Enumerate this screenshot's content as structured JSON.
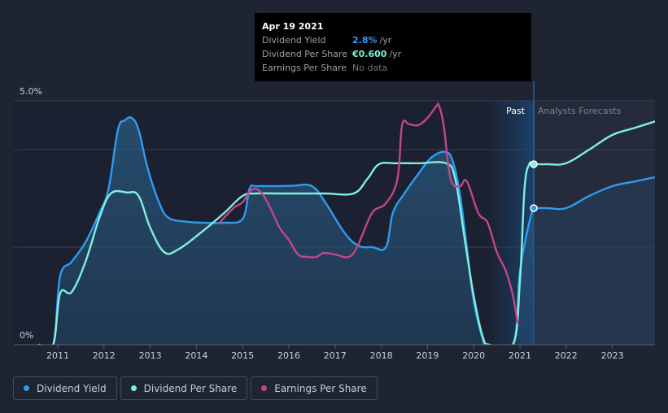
{
  "tooltip": {
    "date": "Apr 19 2021",
    "rows": [
      {
        "label": "Dividend Yield",
        "value": "2.8%",
        "unit": "/yr"
      },
      {
        "label": "Dividend Per Share",
        "value": "€0.600",
        "unit": "/yr"
      },
      {
        "label": "Earnings Per Share",
        "value": "No data"
      }
    ]
  },
  "region_labels": {
    "past": "Past",
    "forecast": "Analysts Forecasts"
  },
  "legend": [
    {
      "label": "Dividend Yield",
      "color": "#2f9bf0"
    },
    {
      "label": "Dividend Per Share",
      "color": "#7ff0dc"
    },
    {
      "label": "Earnings Per Share",
      "color": "#c4458a"
    }
  ],
  "chart_data": {
    "type": "line",
    "x_ticks": [
      "2011",
      "2012",
      "2013",
      "2014",
      "2015",
      "2016",
      "2017",
      "2018",
      "2019",
      "2020",
      "2021",
      "2022",
      "2023"
    ],
    "y_ticks": [
      "0%",
      "5.0%"
    ],
    "ylim": [
      0,
      5.0
    ],
    "xlim": [
      2010.5,
      2024.0
    ],
    "past_until": 2021.3,
    "series": [
      {
        "name": "Dividend Yield",
        "color": "#2f9bf0",
        "points": [
          [
            2010.6,
            0.0
          ],
          [
            2010.9,
            0.0
          ],
          [
            2011.05,
            1.4
          ],
          [
            2011.3,
            1.7
          ],
          [
            2011.6,
            2.1
          ],
          [
            2011.9,
            2.7
          ],
          [
            2012.1,
            3.2
          ],
          [
            2012.3,
            4.4
          ],
          [
            2012.45,
            4.6
          ],
          [
            2012.6,
            4.65
          ],
          [
            2012.75,
            4.4
          ],
          [
            2012.95,
            3.6
          ],
          [
            2013.2,
            2.9
          ],
          [
            2013.4,
            2.6
          ],
          [
            2013.8,
            2.52
          ],
          [
            2014.2,
            2.5
          ],
          [
            2014.6,
            2.5
          ],
          [
            2015.0,
            2.58
          ],
          [
            2015.15,
            3.2
          ],
          [
            2015.3,
            3.25
          ],
          [
            2015.7,
            3.25
          ],
          [
            2016.1,
            3.26
          ],
          [
            2016.5,
            3.25
          ],
          [
            2016.8,
            2.9
          ],
          [
            2017.2,
            2.3
          ],
          [
            2017.5,
            2.03
          ],
          [
            2017.8,
            2.0
          ],
          [
            2018.1,
            2.0
          ],
          [
            2018.25,
            2.7
          ],
          [
            2018.5,
            3.1
          ],
          [
            2018.8,
            3.5
          ],
          [
            2019.1,
            3.85
          ],
          [
            2019.4,
            3.95
          ],
          [
            2019.55,
            3.75
          ],
          [
            2019.7,
            3.1
          ],
          [
            2019.85,
            2.0
          ],
          [
            2020.0,
            0.9
          ],
          [
            2020.2,
            0.1
          ],
          [
            2020.3,
            0.0
          ],
          [
            2020.85,
            0.0
          ],
          [
            2021.0,
            1.5
          ],
          [
            2021.2,
            2.5
          ],
          [
            2021.3,
            2.8
          ]
        ]
      },
      {
        "name": "Dividend Per Share",
        "color": "#7ff0dc",
        "points": [
          [
            2010.6,
            0.0
          ],
          [
            2010.9,
            0.0
          ],
          [
            2011.05,
            1.05
          ],
          [
            2011.3,
            1.08
          ],
          [
            2011.6,
            1.7
          ],
          [
            2011.9,
            2.6
          ],
          [
            2012.15,
            3.1
          ],
          [
            2012.5,
            3.12
          ],
          [
            2012.75,
            3.05
          ],
          [
            2013.0,
            2.4
          ],
          [
            2013.3,
            1.9
          ],
          [
            2013.6,
            1.95
          ],
          [
            2014.1,
            2.3
          ],
          [
            2014.6,
            2.7
          ],
          [
            2015.0,
            3.05
          ],
          [
            2015.3,
            3.1
          ],
          [
            2015.8,
            3.1
          ],
          [
            2016.3,
            3.1
          ],
          [
            2016.8,
            3.1
          ],
          [
            2017.4,
            3.1
          ],
          [
            2017.7,
            3.4
          ],
          [
            2017.95,
            3.7
          ],
          [
            2018.3,
            3.72
          ],
          [
            2018.8,
            3.72
          ],
          [
            2019.4,
            3.72
          ],
          [
            2019.6,
            3.4
          ],
          [
            2019.8,
            2.2
          ],
          [
            2020.0,
            1.0
          ],
          [
            2020.2,
            0.15
          ],
          [
            2020.35,
            0.0
          ],
          [
            2020.85,
            0.0
          ],
          [
            2021.0,
            1.3
          ],
          [
            2021.1,
            3.2
          ],
          [
            2021.2,
            3.7
          ],
          [
            2021.3,
            3.7
          ],
          [
            2021.6,
            3.7
          ],
          [
            2022.0,
            3.72
          ],
          [
            2022.5,
            4.0
          ],
          [
            2023.0,
            4.3
          ],
          [
            2023.5,
            4.45
          ],
          [
            2024.0,
            4.6
          ]
        ]
      },
      {
        "name": "Earnings Per Share",
        "color": "#c4458a",
        "points": [
          [
            2014.5,
            2.5
          ],
          [
            2014.8,
            2.8
          ],
          [
            2015.0,
            2.92
          ],
          [
            2015.2,
            3.18
          ],
          [
            2015.4,
            3.12
          ],
          [
            2015.6,
            2.8
          ],
          [
            2015.8,
            2.4
          ],
          [
            2016.0,
            2.15
          ],
          [
            2016.2,
            1.85
          ],
          [
            2016.4,
            1.8
          ],
          [
            2016.6,
            1.8
          ],
          [
            2016.75,
            1.88
          ],
          [
            2017.0,
            1.85
          ],
          [
            2017.3,
            1.8
          ],
          [
            2017.5,
            2.05
          ],
          [
            2017.8,
            2.7
          ],
          [
            2018.1,
            2.9
          ],
          [
            2018.35,
            3.4
          ],
          [
            2018.45,
            4.5
          ],
          [
            2018.6,
            4.52
          ],
          [
            2018.8,
            4.5
          ],
          [
            2019.0,
            4.65
          ],
          [
            2019.2,
            4.9
          ],
          [
            2019.25,
            4.9
          ],
          [
            2019.35,
            4.5
          ],
          [
            2019.5,
            3.4
          ],
          [
            2019.7,
            3.25
          ],
          [
            2019.85,
            3.35
          ],
          [
            2020.1,
            2.7
          ],
          [
            2020.3,
            2.5
          ],
          [
            2020.5,
            1.9
          ],
          [
            2020.7,
            1.5
          ],
          [
            2020.85,
            1.0
          ],
          [
            2020.95,
            0.45
          ]
        ]
      }
    ],
    "area_fill_series": "Dividend Yield",
    "highlight_points": [
      {
        "series": "Dividend Per Share",
        "x": 2021.3,
        "y": 3.7
      },
      {
        "series": "Dividend Yield",
        "x": 2021.3,
        "y": 2.8
      }
    ]
  }
}
